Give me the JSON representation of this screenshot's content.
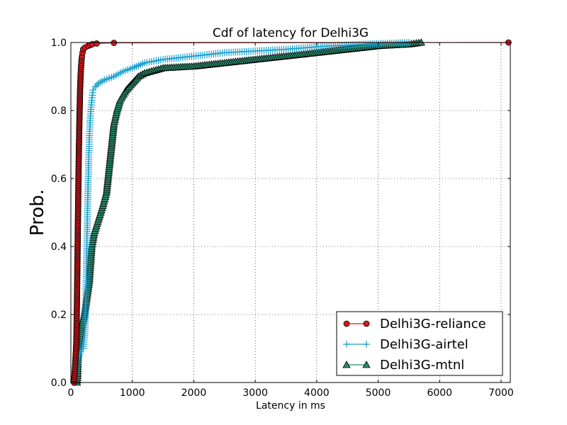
{
  "chart_data": {
    "type": "line",
    "title": "Cdf of latency for Delhi3G",
    "xlabel": "Latency in ms",
    "ylabel": "Prob.",
    "xlim": [
      0,
      7150
    ],
    "ylim": [
      0.0,
      1.0
    ],
    "xticks": [
      0,
      1000,
      2000,
      3000,
      4000,
      5000,
      6000,
      7000
    ],
    "yticks": [
      0.0,
      0.2,
      0.4,
      0.6,
      0.8,
      1.0
    ],
    "xtick_labels": [
      "0",
      "1000",
      "2000",
      "3000",
      "4000",
      "5000",
      "6000",
      "7000"
    ],
    "ytick_labels": [
      "0.0",
      "0.2",
      "0.4",
      "0.6",
      "0.8",
      "1.0"
    ],
    "grid": true,
    "legend_position": "bottom-right",
    "series": [
      {
        "name": "Delhi3G-reliance",
        "color": "#d7191c",
        "marker": "circle",
        "x": [
          50,
          70,
          90,
          100,
          110,
          120,
          130,
          140,
          150,
          160,
          170,
          180,
          190,
          200,
          230,
          280,
          350,
          420,
          700,
          7120
        ],
        "y": [
          0.0,
          0.05,
          0.12,
          0.25,
          0.4,
          0.55,
          0.68,
          0.78,
          0.86,
          0.91,
          0.94,
          0.96,
          0.97,
          0.98,
          0.985,
          0.99,
          0.995,
          0.997,
          0.999,
          1.0
        ]
      },
      {
        "name": "Delhi3G-airtel",
        "color": "#1ba0cb",
        "marker": "plus",
        "x": [
          40,
          80,
          120,
          160,
          200,
          230,
          250,
          270,
          290,
          300,
          320,
          340,
          360,
          400,
          450,
          550,
          700,
          850,
          1000,
          1200,
          1500,
          2000,
          2500,
          3000,
          3500,
          4200,
          4800,
          5500
        ],
        "y": [
          0.0,
          0.03,
          0.07,
          0.09,
          0.1,
          0.15,
          0.3,
          0.5,
          0.65,
          0.72,
          0.79,
          0.83,
          0.86,
          0.87,
          0.88,
          0.89,
          0.9,
          0.915,
          0.925,
          0.94,
          0.95,
          0.96,
          0.97,
          0.975,
          0.98,
          0.99,
          0.995,
          1.0
        ]
      },
      {
        "name": "Delhi3G-mtnl",
        "color": "#2b8c6e",
        "marker": "triangle",
        "x": [
          100,
          110,
          120,
          160,
          220,
          300,
          340,
          380,
          450,
          520,
          580,
          640,
          700,
          750,
          800,
          900,
          1000,
          1100,
          1200,
          1500,
          2000,
          2500,
          3000,
          3500,
          4000,
          4500,
          5000,
          5500,
          5700
        ],
        "y": [
          0.0,
          0.02,
          0.1,
          0.15,
          0.2,
          0.3,
          0.4,
          0.44,
          0.48,
          0.52,
          0.56,
          0.66,
          0.76,
          0.8,
          0.83,
          0.86,
          0.88,
          0.9,
          0.91,
          0.925,
          0.93,
          0.94,
          0.95,
          0.96,
          0.97,
          0.98,
          0.99,
          0.995,
          1.0
        ]
      }
    ]
  }
}
